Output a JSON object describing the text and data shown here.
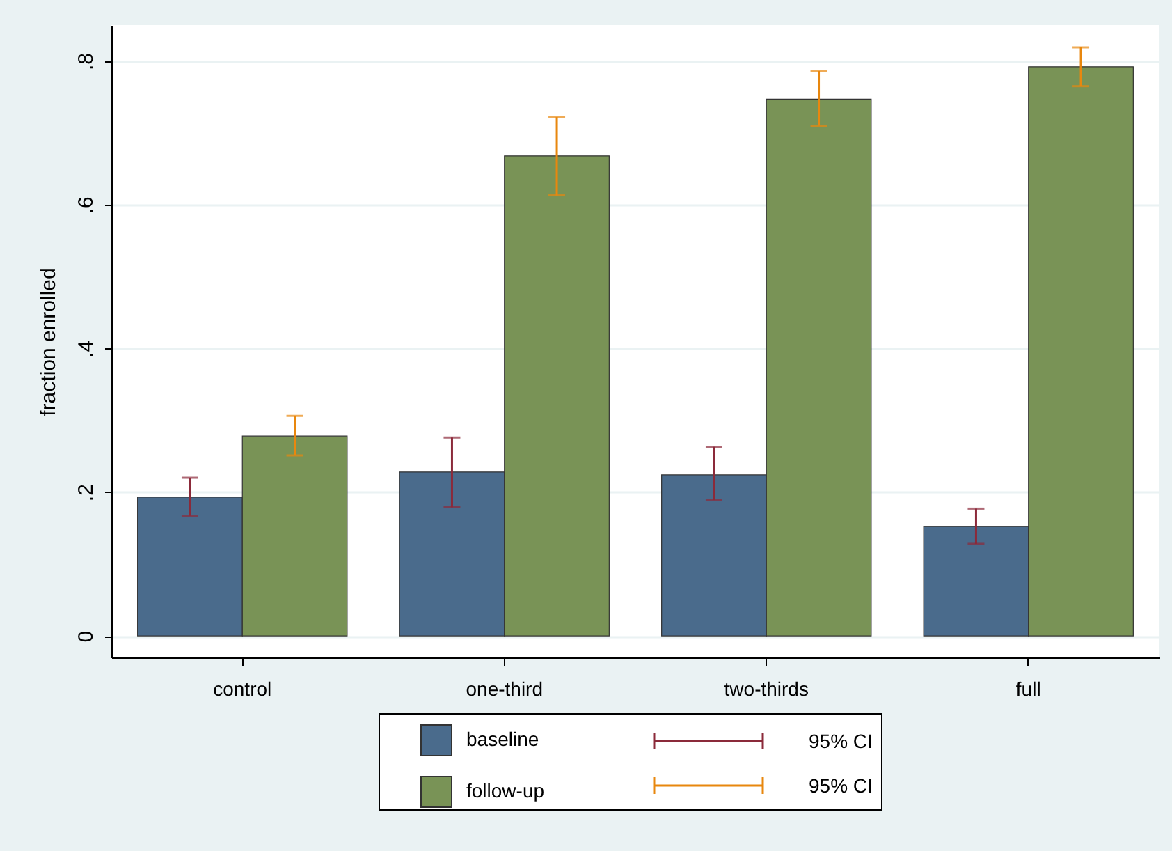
{
  "chart_data": {
    "type": "bar",
    "ylabel": "fraction enrolled",
    "categories": [
      "control",
      "one-third",
      "two-thirds",
      "full"
    ],
    "series": [
      {
        "name": "baseline",
        "color": "#4a6b8c",
        "values": [
          0.193,
          0.228,
          0.224,
          0.152
        ],
        "errors": [
          [
            0.167,
            0.22
          ],
          [
            0.179,
            0.276
          ],
          [
            0.189,
            0.263
          ],
          [
            0.128,
            0.177
          ]
        ]
      },
      {
        "name": "follow-up",
        "color": "#799356",
        "values": [
          0.278,
          0.668,
          0.747,
          0.792
        ],
        "errors": [
          [
            0.251,
            0.306
          ],
          [
            0.613,
            0.722
          ],
          [
            0.71,
            0.786
          ],
          [
            0.765,
            0.819
          ]
        ]
      }
    ],
    "annotations": [
      "95% CI",
      "95% CI"
    ],
    "ylim": [
      -0.03,
      0.85
    ],
    "yticks": [
      0,
      {
        "value": 0.2,
        "label": ".2"
      },
      {
        "value": 0.4,
        "label": ".4"
      },
      {
        "value": 0.6,
        "label": ".6"
      },
      {
        "value": 0.8,
        "label": ".8"
      }
    ],
    "grid": "y",
    "legend": "bottom"
  }
}
